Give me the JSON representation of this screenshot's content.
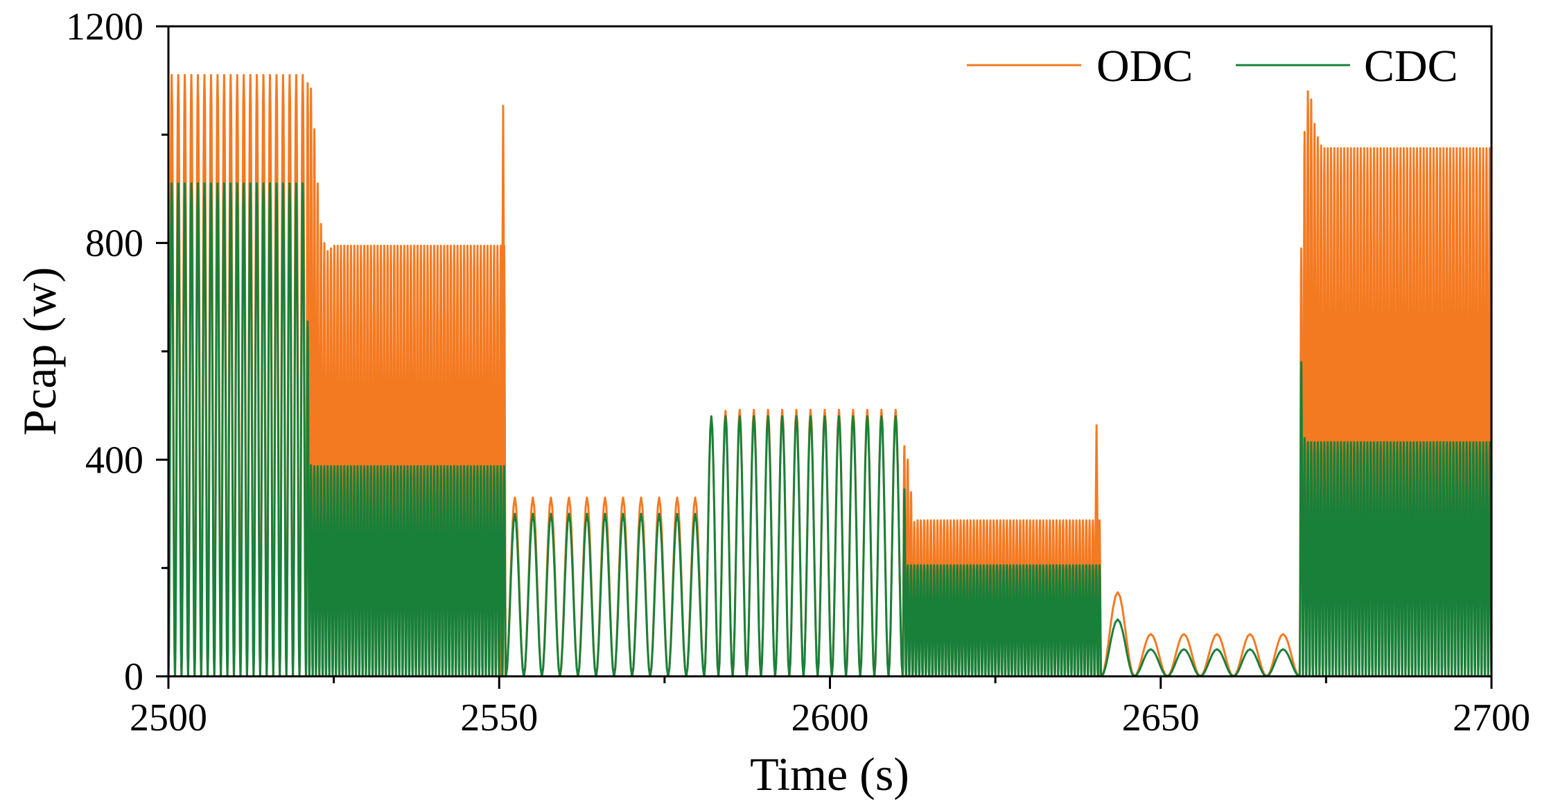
{
  "chart_data": {
    "type": "line",
    "title": "",
    "xlabel": "Time (s)",
    "ylabel": "Pcap (w)",
    "xlim": [
      2500,
      2700
    ],
    "ylim": [
      0,
      1200
    ],
    "xticks": [
      2500,
      2550,
      2600,
      2650,
      2700
    ],
    "xtick_labels": [
      "2500",
      "2550",
      "2600",
      "2650",
      "2700"
    ],
    "yticks": [
      0,
      400,
      800,
      1200
    ],
    "ytick_labels": [
      "0",
      "400",
      "800",
      "1200"
    ],
    "grid": false,
    "legend": {
      "placement": "top-right",
      "entries": [
        "ODC",
        "CDC"
      ]
    },
    "series": [
      {
        "name": "ODC",
        "color": "#f47a22",
        "segments": [
          {
            "start": 2500,
            "end": 2520.8,
            "peaks": [
              1110
            ],
            "min": 0,
            "period": 1.0
          },
          {
            "start": 2520.8,
            "end": 2551.0,
            "peaks": [
              1095,
              1085,
              1010,
              910,
              835,
              800,
              785,
              790
            ],
            "steady": 795,
            "min": 0,
            "period": 0.5
          },
          {
            "start": 2551.0,
            "end": 2581.0,
            "peaks": [
              330
            ],
            "min": 0,
            "period": 2.8
          },
          {
            "start": 2581.0,
            "end": 2611.0,
            "peaks": [
              480,
              490
            ],
            "steady": 492,
            "min": 0,
            "period": 2.2
          },
          {
            "start": 2611.0,
            "end": 2641.0,
            "peaks": [
              425,
              400,
              340,
              285
            ],
            "steady": 288,
            "min": 0,
            "period": 0.5
          },
          {
            "start": 2641.0,
            "end": 2671.0,
            "peaks": [
              155
            ],
            "steady": 78,
            "min": 0,
            "period": 4.9
          },
          {
            "start": 2671.0,
            "end": 2700,
            "peaks": [
              790,
              1005,
              1080,
              1065,
              1020,
              995,
              980
            ],
            "steady": 975,
            "min": 0,
            "period": 0.5
          }
        ],
        "spikes": [
          {
            "x": 2550.6,
            "y": 1055
          },
          {
            "x": 2640.3,
            "y": 465
          }
        ]
      },
      {
        "name": "CDC",
        "color": "#19803a",
        "segments": [
          {
            "start": 2500,
            "end": 2520.8,
            "peaks": [
              910
            ],
            "min": 0,
            "period": 1.0
          },
          {
            "start": 2520.8,
            "end": 2551.0,
            "peaks": [
              655,
              390
            ],
            "steady": 388,
            "min": 0,
            "period": 0.5
          },
          {
            "start": 2551.0,
            "end": 2581.0,
            "peaks": [
              300
            ],
            "min": 0,
            "period": 2.8
          },
          {
            "start": 2581.0,
            "end": 2611.0,
            "peaks": [
              480
            ],
            "min": 0,
            "period": 2.2
          },
          {
            "start": 2611.0,
            "end": 2641.0,
            "peaks": [
              345,
              205
            ],
            "steady": 205,
            "min": 0,
            "period": 0.5
          },
          {
            "start": 2641.0,
            "end": 2671.0,
            "peaks": [
              105
            ],
            "steady": 50,
            "min": 0,
            "period": 4.9
          },
          {
            "start": 2671.0,
            "end": 2700,
            "peaks": [
              580,
              440
            ],
            "steady": 432,
            "min": 0,
            "period": 0.5
          }
        ],
        "spikes": []
      }
    ]
  }
}
